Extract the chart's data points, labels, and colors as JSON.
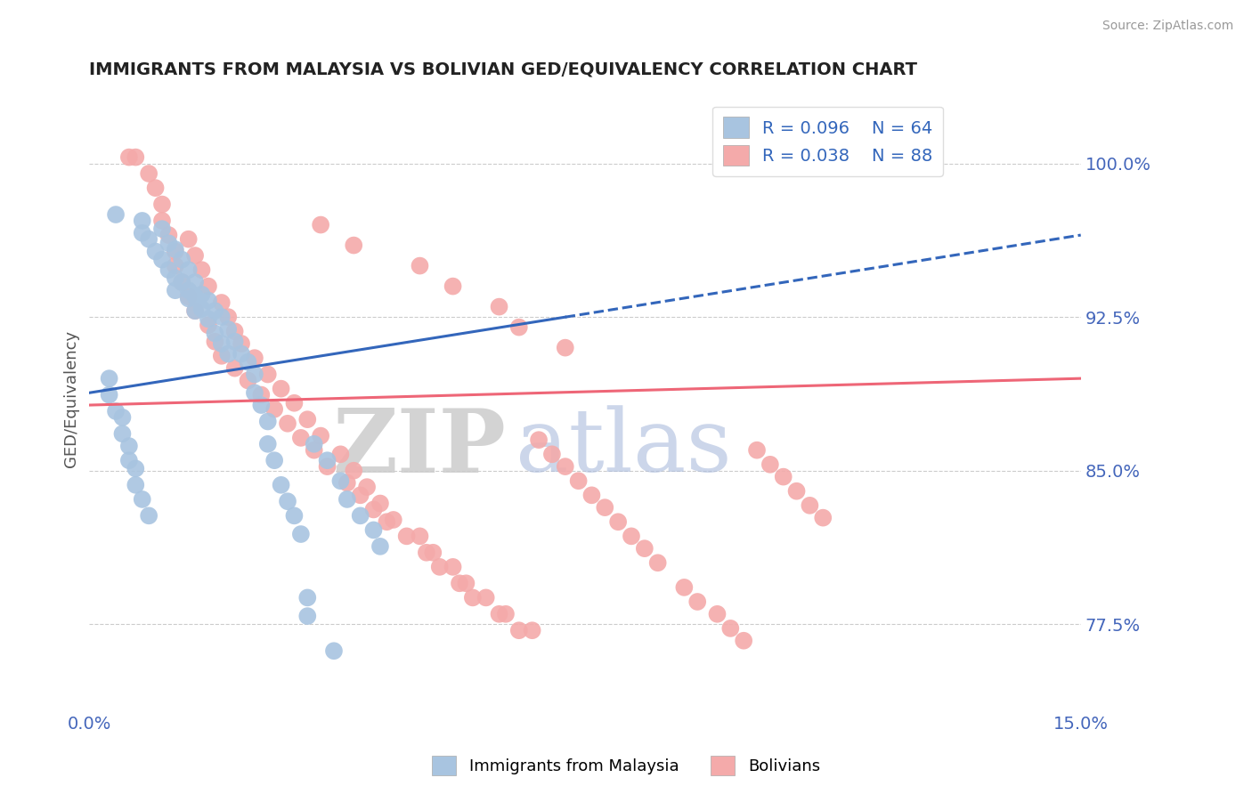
{
  "title": "IMMIGRANTS FROM MALAYSIA VS BOLIVIAN GED/EQUIVALENCY CORRELATION CHART",
  "source": "Source: ZipAtlas.com",
  "ylabel": "GED/Equivalency",
  "xlim": [
    0.0,
    0.15
  ],
  "ylim": [
    0.735,
    1.035
  ],
  "xticklabels": [
    "0.0%",
    "15.0%"
  ],
  "yticks_right": [
    0.775,
    0.85,
    0.925,
    1.0
  ],
  "yticklabels_right": [
    "77.5%",
    "85.0%",
    "92.5%",
    "100.0%"
  ],
  "blue_R": 0.096,
  "blue_N": 64,
  "pink_R": 0.038,
  "pink_N": 88,
  "blue_color": "#A8C4E0",
  "pink_color": "#F4AAAA",
  "blue_line_color": "#3366BB",
  "pink_line_color": "#EE6677",
  "legend_label_blue": "Immigrants from Malaysia",
  "legend_label_pink": "Bolivians",
  "watermark_zip": "ZIP",
  "watermark_atlas": "atlas",
  "background_color": "#ffffff",
  "grid_color": "#cccccc",
  "title_color": "#222222",
  "blue_x": [
    0.004,
    0.008,
    0.008,
    0.009,
    0.01,
    0.011,
    0.011,
    0.012,
    0.012,
    0.013,
    0.013,
    0.013,
    0.014,
    0.014,
    0.015,
    0.015,
    0.015,
    0.016,
    0.016,
    0.016,
    0.017,
    0.017,
    0.018,
    0.018,
    0.019,
    0.019,
    0.02,
    0.02,
    0.021,
    0.021,
    0.022,
    0.023,
    0.024,
    0.025,
    0.025,
    0.026,
    0.027,
    0.027,
    0.028,
    0.029,
    0.03,
    0.031,
    0.032,
    0.034,
    0.036,
    0.038,
    0.039,
    0.041,
    0.043,
    0.044,
    0.003,
    0.003,
    0.004,
    0.005,
    0.005,
    0.006,
    0.006,
    0.007,
    0.007,
    0.008,
    0.009,
    0.033,
    0.033,
    0.037
  ],
  "blue_y": [
    0.975,
    0.972,
    0.966,
    0.963,
    0.957,
    0.968,
    0.953,
    0.961,
    0.948,
    0.958,
    0.944,
    0.938,
    0.953,
    0.942,
    0.948,
    0.938,
    0.934,
    0.942,
    0.935,
    0.928,
    0.936,
    0.929,
    0.933,
    0.924,
    0.928,
    0.917,
    0.925,
    0.912,
    0.919,
    0.907,
    0.913,
    0.907,
    0.903,
    0.897,
    0.888,
    0.882,
    0.874,
    0.863,
    0.855,
    0.843,
    0.835,
    0.828,
    0.819,
    0.863,
    0.855,
    0.845,
    0.836,
    0.828,
    0.821,
    0.813,
    0.895,
    0.887,
    0.879,
    0.876,
    0.868,
    0.862,
    0.855,
    0.851,
    0.843,
    0.836,
    0.828,
    0.788,
    0.779,
    0.762
  ],
  "pink_x": [
    0.007,
    0.009,
    0.01,
    0.011,
    0.011,
    0.012,
    0.013,
    0.013,
    0.014,
    0.015,
    0.015,
    0.016,
    0.016,
    0.017,
    0.018,
    0.018,
    0.019,
    0.02,
    0.02,
    0.021,
    0.022,
    0.022,
    0.023,
    0.024,
    0.025,
    0.026,
    0.027,
    0.028,
    0.029,
    0.03,
    0.031,
    0.032,
    0.033,
    0.034,
    0.035,
    0.036,
    0.038,
    0.039,
    0.04,
    0.041,
    0.042,
    0.043,
    0.044,
    0.045,
    0.046,
    0.048,
    0.05,
    0.051,
    0.052,
    0.053,
    0.055,
    0.056,
    0.057,
    0.058,
    0.06,
    0.062,
    0.063,
    0.065,
    0.067,
    0.068,
    0.07,
    0.072,
    0.074,
    0.076,
    0.078,
    0.08,
    0.082,
    0.084,
    0.086,
    0.09,
    0.092,
    0.095,
    0.097,
    0.099,
    0.101,
    0.103,
    0.105,
    0.107,
    0.109,
    0.111,
    0.006,
    0.035,
    0.04,
    0.05,
    0.055,
    0.062,
    0.065,
    0.072
  ],
  "pink_y": [
    1.003,
    0.995,
    0.988,
    0.98,
    0.972,
    0.965,
    0.957,
    0.95,
    0.942,
    0.963,
    0.935,
    0.955,
    0.928,
    0.948,
    0.921,
    0.94,
    0.913,
    0.932,
    0.906,
    0.925,
    0.918,
    0.9,
    0.912,
    0.894,
    0.905,
    0.887,
    0.897,
    0.88,
    0.89,
    0.873,
    0.883,
    0.866,
    0.875,
    0.86,
    0.867,
    0.852,
    0.858,
    0.844,
    0.85,
    0.838,
    0.842,
    0.831,
    0.834,
    0.825,
    0.826,
    0.818,
    0.818,
    0.81,
    0.81,
    0.803,
    0.803,
    0.795,
    0.795,
    0.788,
    0.788,
    0.78,
    0.78,
    0.772,
    0.772,
    0.865,
    0.858,
    0.852,
    0.845,
    0.838,
    0.832,
    0.825,
    0.818,
    0.812,
    0.805,
    0.793,
    0.786,
    0.78,
    0.773,
    0.767,
    0.86,
    0.853,
    0.847,
    0.84,
    0.833,
    0.827,
    1.003,
    0.97,
    0.96,
    0.95,
    0.94,
    0.93,
    0.92,
    0.91
  ]
}
